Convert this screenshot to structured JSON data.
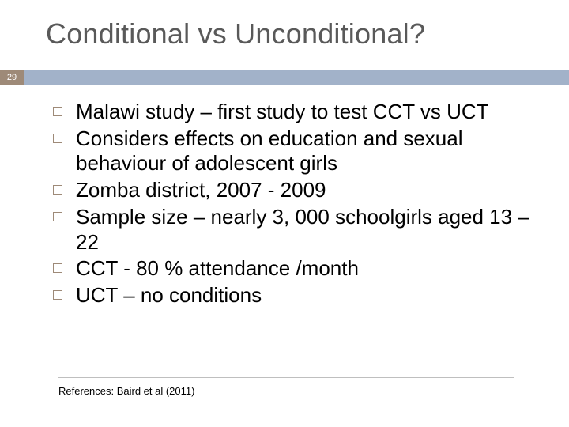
{
  "title": "Conditional vs Unconditional?",
  "page_number": "29",
  "accent_bar_color": "#a2b2c9",
  "page_badge_color": "#9e8a78",
  "text_color": "#000000",
  "title_color": "#595959",
  "background_color": "#ffffff",
  "bullets": [
    "Malawi study – first study to test CCT vs UCT",
    "Considers effects on education and sexual behaviour of adolescent girls",
    "Zomba district, 2007 - 2009",
    "Sample size – nearly 3, 000 schoolgirls aged 13 – 22",
    "CCT - 80 % attendance /month",
    "UCT – no conditions"
  ],
  "references": "References: Baird et al (2011)"
}
